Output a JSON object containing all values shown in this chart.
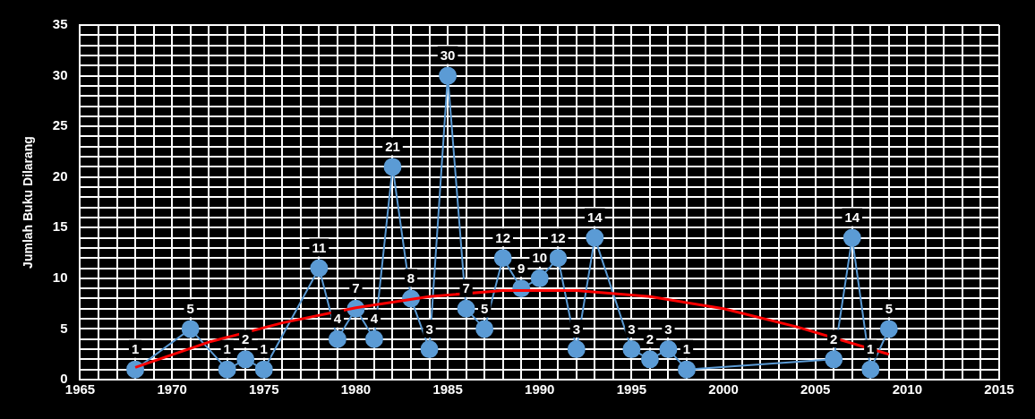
{
  "chart_data": {
    "type": "line",
    "ylabel": "Jumlah Buku Dilarang",
    "x": [
      1968,
      1971,
      1973,
      1974,
      1975,
      1978,
      1979,
      1980,
      1981,
      1982,
      1983,
      1984,
      1985,
      1986,
      1987,
      1988,
      1989,
      1990,
      1991,
      1992,
      1993,
      1995,
      1996,
      1997,
      1998,
      2006,
      2007,
      2008,
      2009
    ],
    "series": [
      {
        "color": "#5b9bd5",
        "values": [
          1,
          5,
          1,
          2,
          1,
          11,
          4,
          7,
          4,
          21,
          8,
          3,
          30,
          7,
          5,
          12,
          9,
          10,
          12,
          3,
          14,
          3,
          2,
          3,
          1,
          2,
          14,
          1,
          5
        ],
        "value_labels": [
          "1",
          "5",
          "1",
          "2",
          "1",
          "11",
          "4",
          "7",
          "4",
          "21",
          "8",
          "3",
          "30",
          "7",
          "5",
          "12",
          "9",
          "10",
          "12",
          "3",
          "14",
          "3",
          "2",
          "3",
          "1",
          "2",
          "14",
          "1",
          "5"
        ]
      },
      {
        "type": "line",
        "color": "#ff0000",
        "marker": "none",
        "x": [
          1968,
          1972,
          1976,
          1980,
          1984,
          1988,
          1992,
          1996,
          2000,
          2004,
          2009
        ],
        "values": [
          1.2,
          3.7,
          5.6,
          7.1,
          8.2,
          8.8,
          8.8,
          8.2,
          7.0,
          5.2,
          2.5
        ]
      }
    ],
    "marker": "circle",
    "grid": true,
    "legend": false,
    "xlim": [
      1965,
      2015
    ],
    "ylim": [
      0,
      35
    ],
    "xticks": [
      1965,
      {
        "value": 1966,
        "label": null
      },
      {
        "value": 1967,
        "label": null
      },
      {
        "value": 1968,
        "label": null
      },
      {
        "value": 1969,
        "label": null
      },
      1970,
      {
        "value": 1971,
        "label": null
      },
      {
        "value": 1972,
        "label": null
      },
      {
        "value": 1973,
        "label": null
      },
      {
        "value": 1974,
        "label": null
      },
      1975,
      {
        "value": 1976,
        "label": null
      },
      {
        "value": 1977,
        "label": null
      },
      {
        "value": 1978,
        "label": null
      },
      {
        "value": 1979,
        "label": null
      },
      1980,
      {
        "value": 1981,
        "label": null
      },
      {
        "value": 1982,
        "label": null
      },
      {
        "value": 1983,
        "label": null
      },
      {
        "value": 1984,
        "label": null
      },
      1985,
      {
        "value": 1986,
        "label": null
      },
      {
        "value": 1987,
        "label": null
      },
      {
        "value": 1988,
        "label": null
      },
      {
        "value": 1989,
        "label": null
      },
      1990,
      {
        "value": 1991,
        "label": null
      },
      {
        "value": 1992,
        "label": null
      },
      {
        "value": 1993,
        "label": null
      },
      {
        "value": 1994,
        "label": null
      },
      1995,
      {
        "value": 1996,
        "label": null
      },
      {
        "value": 1997,
        "label": null
      },
      {
        "value": 1998,
        "label": null
      },
      {
        "value": 1999,
        "label": null
      },
      2000,
      {
        "value": 2001,
        "label": null
      },
      {
        "value": 2002,
        "label": null
      },
      {
        "value": 2003,
        "label": null
      },
      {
        "value": 2004,
        "label": null
      },
      2005,
      {
        "value": 2006,
        "label": null
      },
      {
        "value": 2007,
        "label": null
      },
      {
        "value": 2008,
        "label": null
      },
      {
        "value": 2009,
        "label": null
      },
      2010,
      {
        "value": 2011,
        "label": null
      },
      {
        "value": 2012,
        "label": null
      },
      {
        "value": 2013,
        "label": null
      },
      {
        "value": 2014,
        "label": null
      },
      2015
    ],
    "yticks": [
      0,
      {
        "value": 1,
        "label": null
      },
      {
        "value": 2,
        "label": null
      },
      {
        "value": 3,
        "label": null
      },
      {
        "value": 4,
        "label": null
      },
      5,
      {
        "value": 6,
        "label": null
      },
      {
        "value": 7,
        "label": null
      },
      {
        "value": 8,
        "label": null
      },
      {
        "value": 9,
        "label": null
      },
      10,
      {
        "value": 11,
        "label": null
      },
      {
        "value": 12,
        "label": null
      },
      {
        "value": 13,
        "label": null
      },
      {
        "value": 14,
        "label": null
      },
      15,
      {
        "value": 16,
        "label": null
      },
      {
        "value": 17,
        "label": null
      },
      {
        "value": 18,
        "label": null
      },
      {
        "value": 19,
        "label": null
      },
      20,
      {
        "value": 21,
        "label": null
      },
      {
        "value": 22,
        "label": null
      },
      {
        "value": 23,
        "label": null
      },
      {
        "value": 24,
        "label": null
      },
      25,
      {
        "value": 26,
        "label": null
      },
      {
        "value": 27,
        "label": null
      },
      {
        "value": 28,
        "label": null
      },
      {
        "value": 29,
        "label": null
      },
      30,
      {
        "value": 31,
        "label": null
      },
      {
        "value": 32,
        "label": null
      },
      {
        "value": 33,
        "label": null
      },
      {
        "value": 34,
        "label": null
      },
      35
    ]
  }
}
